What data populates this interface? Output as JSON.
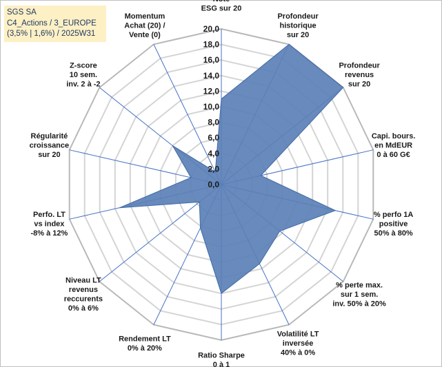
{
  "info_box": {
    "line1": "SGS SA",
    "line2": "C4_Actions / 3_EUROPE",
    "line3": "(3,5% | 1,6%) / 2025W31"
  },
  "colors": {
    "fill": "#5b80b6",
    "stroke": "#3f6aa6",
    "axis": "#4472c4",
    "grid": "#d4d4d4",
    "info_bg": "#fdf0c4"
  },
  "chart_data": {
    "type": "radar",
    "ylim": [
      0,
      20
    ],
    "tick_step": 2,
    "tick_labels": [
      "0,0",
      "2,0",
      "4,0",
      "6,0",
      "8,0",
      "10,0",
      "12,0",
      "14,0",
      "16,0",
      "18,0",
      "20,0"
    ],
    "grid": true,
    "categories": [
      [
        "Note",
        "ESG sur 20"
      ],
      [
        "Profondeur",
        "historique",
        "sur 20"
      ],
      [
        "Profondeur",
        "revenus",
        "sur 20"
      ],
      [
        "Capi. bours.",
        "en MdEUR",
        "0 à 60 G€"
      ],
      [
        "% perfo 1A",
        "positive",
        "50% à 80%"
      ],
      [
        "% perte max.",
        "sur 1 sem.",
        "inv. 50% à 20%"
      ],
      [
        "Volatilité LT",
        "inversée",
        "40% à 0%"
      ],
      [
        "Ratio Sharpe",
        "0 à 1"
      ],
      [
        "Rendement LT",
        "0% à 20%"
      ],
      [
        "Niveau LT",
        "revenus",
        "reccurents",
        "0% à 6%"
      ],
      [
        "Perfo. LT",
        "vs index",
        "-8% à 12%"
      ],
      [
        "Régularité",
        "croissance",
        "sur 20"
      ],
      [
        "Z-score",
        "10 sem.",
        "inv. 2 à -2"
      ],
      [
        "Momentum",
        "Achat (20) /",
        "Vente (0)"
      ]
    ],
    "values": [
      11.0,
      20.0,
      20.0,
      5.2,
      15.0,
      9.6,
      11.3,
      14.0,
      6.2,
      3.6,
      13.4,
      4.0,
      8.0,
      1.8
    ]
  }
}
